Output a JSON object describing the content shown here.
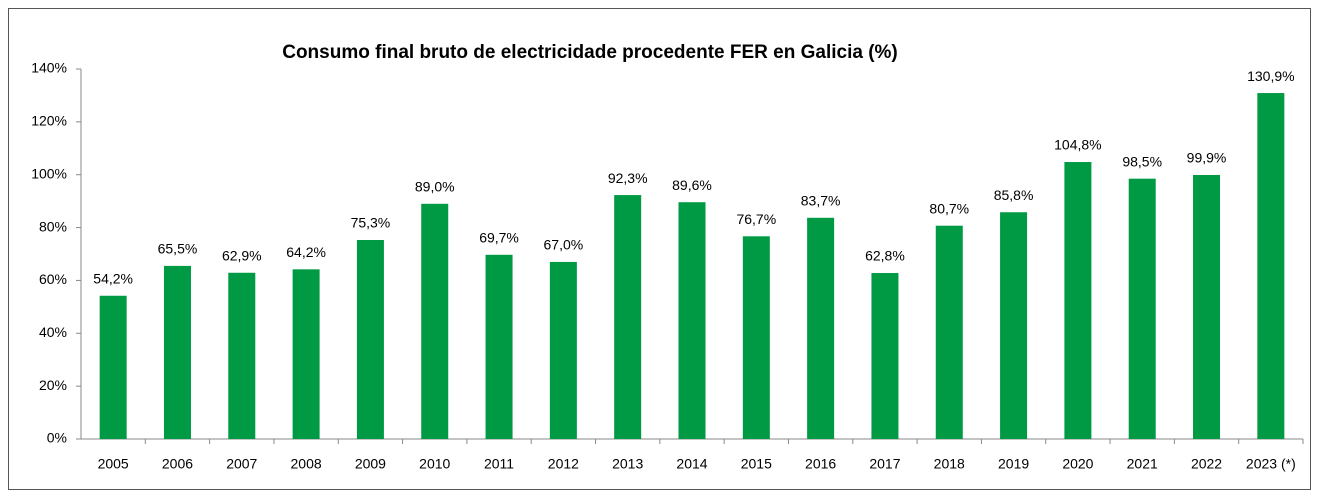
{
  "chart_data": {
    "type": "bar",
    "title": "Consumo final bruto de electricidade procedente FER en Galicia (%)",
    "categories": [
      "2005",
      "2006",
      "2007",
      "2008",
      "2009",
      "2010",
      "2011",
      "2012",
      "2013",
      "2014",
      "2015",
      "2016",
      "2017",
      "2018",
      "2019",
      "2020",
      "2021",
      "2022",
      "2023 (*)"
    ],
    "values": [
      54.2,
      65.5,
      62.9,
      64.2,
      75.3,
      89.0,
      69.7,
      67.0,
      92.3,
      89.6,
      76.7,
      83.7,
      62.8,
      80.7,
      85.8,
      104.8,
      98.5,
      99.9,
      130.9
    ],
    "value_labels": [
      "54,2%",
      "65,5%",
      "62,9%",
      "64,2%",
      "75,3%",
      "89,0%",
      "69,7%",
      "67,0%",
      "92,3%",
      "89,6%",
      "76,7%",
      "83,7%",
      "62,8%",
      "80,7%",
      "85,8%",
      "104,8%",
      "98,5%",
      "99,9%",
      "130,9%"
    ],
    "color": "#009a44",
    "ylim": [
      0,
      140
    ],
    "yticks": [
      {
        "value": 0,
        "label": "0%"
      },
      {
        "value": 20,
        "label": "20%"
      },
      {
        "value": 40,
        "label": "40%"
      },
      {
        "value": 60,
        "label": "60%"
      },
      {
        "value": 80,
        "label": "80%"
      },
      {
        "value": 100,
        "label": "100%"
      },
      {
        "value": 120,
        "label": "120%"
      },
      {
        "value": 140,
        "label": "140%"
      }
    ],
    "grid": false
  }
}
